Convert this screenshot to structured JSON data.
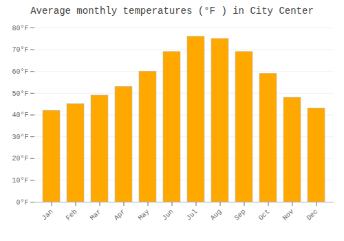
{
  "chart_data": {
    "type": "bar",
    "title": "Average monthly temperatures (°F ) in City Center",
    "categories": [
      "Jan",
      "Feb",
      "Mar",
      "Apr",
      "May",
      "Jun",
      "Jul",
      "Aug",
      "Sep",
      "Oct",
      "Nov",
      "Dec"
    ],
    "values": [
      42,
      45,
      49,
      53,
      60,
      69,
      76,
      75,
      69,
      59,
      48,
      43
    ],
    "color": "#FFA800",
    "ylim": [
      0,
      80
    ],
    "yticks": [
      {
        "value": 0,
        "label": "0°F"
      },
      {
        "value": 10,
        "label": "10°F"
      },
      {
        "value": 20,
        "label": "20°F"
      },
      {
        "value": 30,
        "label": "30°F"
      },
      {
        "value": 40,
        "label": "40°F"
      },
      {
        "value": 50,
        "label": "50°F"
      },
      {
        "value": 60,
        "label": "60°F"
      },
      {
        "value": 70,
        "label": "70°F"
      },
      {
        "value": 80,
        "label": "80°F"
      }
    ],
    "grid": true
  }
}
